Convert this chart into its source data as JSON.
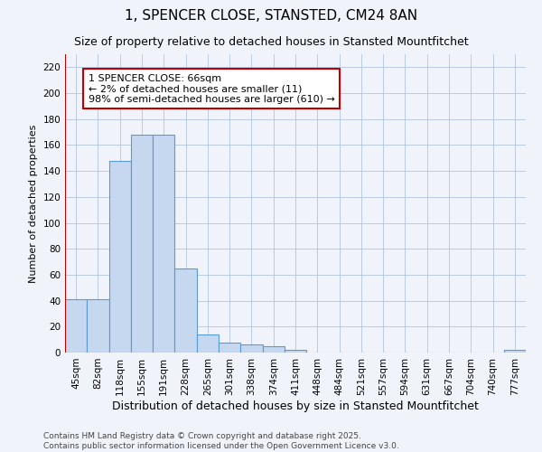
{
  "title": "1, SPENCER CLOSE, STANSTED, CM24 8AN",
  "subtitle": "Size of property relative to detached houses in Stansted Mountfitchet",
  "xlabel": "Distribution of detached houses by size in Stansted Mountfitchet",
  "ylabel": "Number of detached properties",
  "footer_line1": "Contains HM Land Registry data © Crown copyright and database right 2025.",
  "footer_line2": "Contains public sector information licensed under the Open Government Licence v3.0.",
  "categories": [
    "45sqm",
    "82sqm",
    "118sqm",
    "155sqm",
    "191sqm",
    "228sqm",
    "265sqm",
    "301sqm",
    "338sqm",
    "374sqm",
    "411sqm",
    "448sqm",
    "484sqm",
    "521sqm",
    "557sqm",
    "594sqm",
    "631sqm",
    "667sqm",
    "704sqm",
    "740sqm",
    "777sqm"
  ],
  "values": [
    41,
    41,
    148,
    168,
    168,
    65,
    14,
    8,
    6,
    5,
    2,
    0,
    0,
    0,
    0,
    0,
    0,
    0,
    0,
    0,
    2
  ],
  "bar_color": "#c5d8f0",
  "bar_edge_color": "#5b9bd5",
  "bar_width": 1.0,
  "ylim": [
    0,
    230
  ],
  "yticks": [
    0,
    20,
    40,
    60,
    80,
    100,
    120,
    140,
    160,
    180,
    200,
    220
  ],
  "property_line_x": -0.5,
  "property_line_color": "#c00000",
  "annotation_text": "1 SPENCER CLOSE: 66sqm\n← 2% of detached houses are smaller (11)\n98% of semi-detached houses are larger (610) →",
  "annotation_box_color": "#ffffff",
  "annotation_box_edge": "#c00000",
  "background_color": "#f0f4fa",
  "grid_color": "#b0c4de",
  "title_fontsize": 11,
  "subtitle_fontsize": 9,
  "xlabel_fontsize": 9,
  "ylabel_fontsize": 8,
  "tick_fontsize": 7.5,
  "annotation_fontsize": 8,
  "footer_fontsize": 6.5
}
